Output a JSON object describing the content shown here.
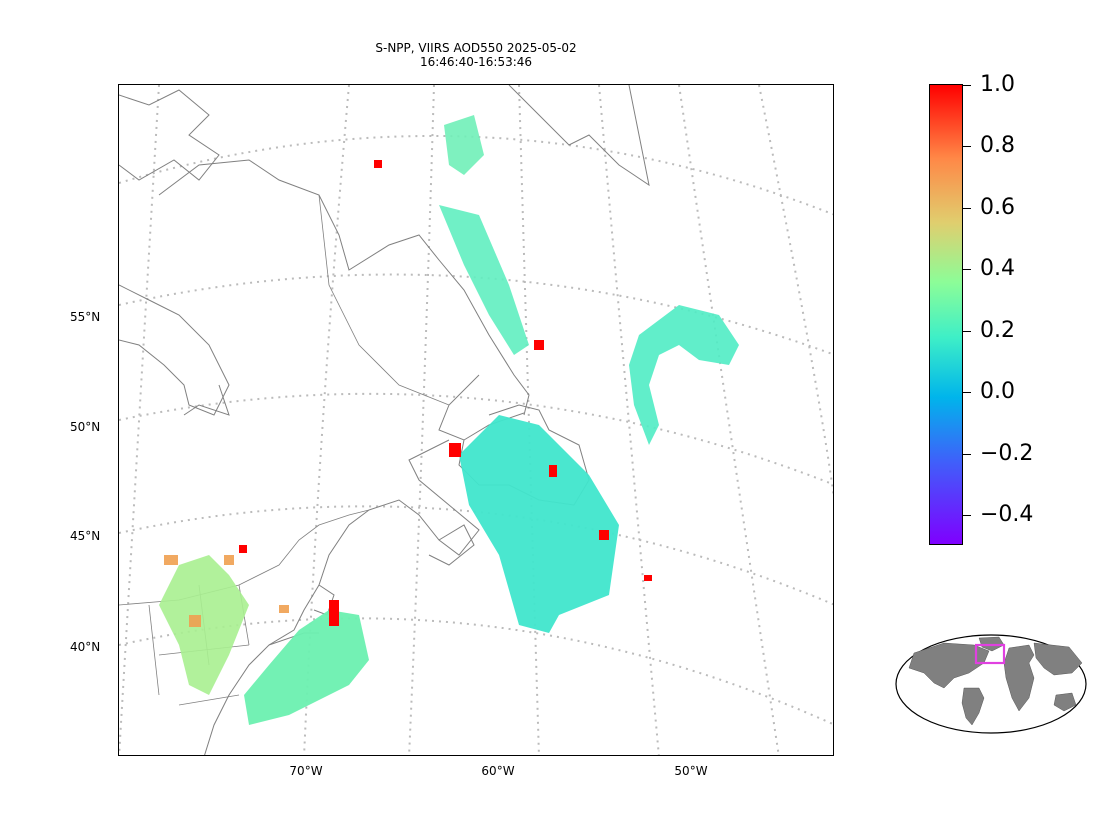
{
  "title": {
    "line1": "S-NPP, VIIRS AOD550 2025-05-02",
    "line2": "16:46:40-16:53:46"
  },
  "map": {
    "projection": "lambert conformal",
    "lat_labels": [
      "55°N",
      "50°N",
      "45°N",
      "40°N"
    ],
    "lon_labels": [
      "70°W",
      "60°W",
      "50°W"
    ],
    "gridlines": "dotted",
    "coastline_color": "#808080",
    "gridline_color": "#bbbbbb"
  },
  "colorbar": {
    "colormap": "rainbow",
    "min": -0.5,
    "max": 1.0,
    "tick_labels": [
      "1.0",
      "0.8",
      "0.6",
      "0.4",
      "0.2",
      "0.0",
      "−0.2",
      "−0.4"
    ]
  },
  "inset": {
    "type": "world locator globe",
    "land_color": "#808080",
    "box_color": "#e040e0"
  }
}
